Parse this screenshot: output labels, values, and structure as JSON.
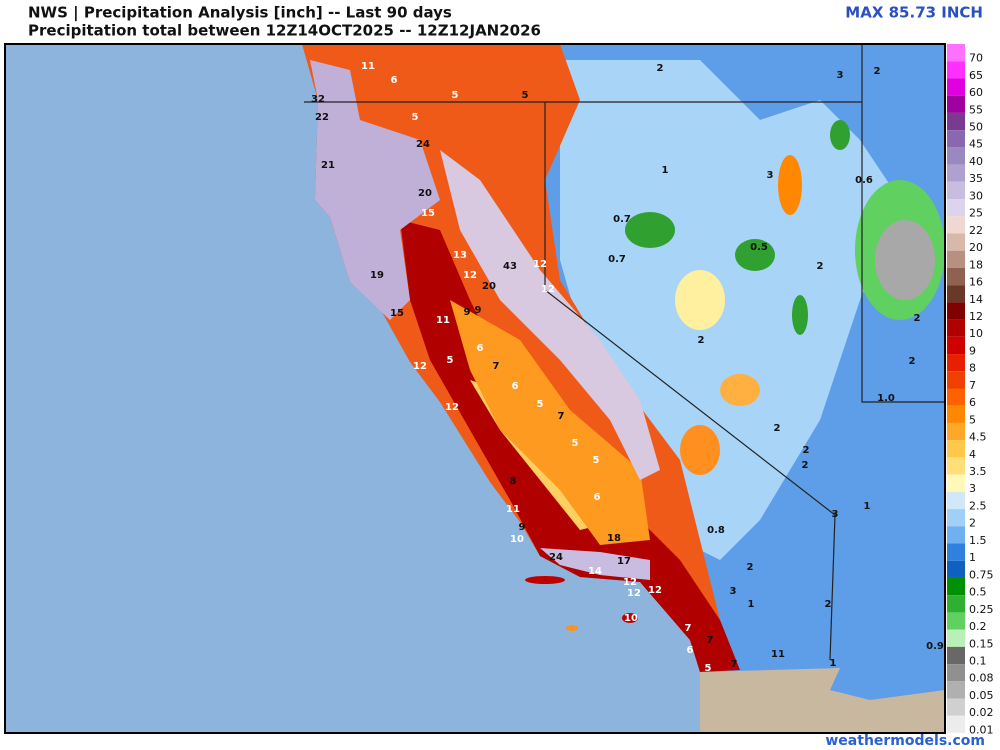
{
  "header": {
    "title": "NWS | Precipitation Analysis [inch] -- Last 90 days",
    "subtitle": "Precipitation total between 12Z14OCT2025 -- 12Z12JAN2026",
    "max_label": "MAX 85.73 INCH"
  },
  "legend": [
    {
      "label": "70",
      "color": "#ff70ff"
    },
    {
      "label": "65",
      "color": "#ff30ff"
    },
    {
      "label": "60",
      "color": "#e000e0"
    },
    {
      "label": "55",
      "color": "#a000a0"
    },
    {
      "label": "50",
      "color": "#7a3a90"
    },
    {
      "label": "45",
      "color": "#8a68b0"
    },
    {
      "label": "40",
      "color": "#9a88c0"
    },
    {
      "label": "35",
      "color": "#b0a0d0"
    },
    {
      "label": "30",
      "color": "#c8bce0"
    },
    {
      "label": "25",
      "color": "#dcd4ec"
    },
    {
      "label": "22",
      "color": "#f0d8d0"
    },
    {
      "label": "20",
      "color": "#d8b8a8"
    },
    {
      "label": "18",
      "color": "#b89080"
    },
    {
      "label": "16",
      "color": "#906050"
    },
    {
      "label": "14",
      "color": "#683828"
    },
    {
      "label": "12",
      "color": "#800000"
    },
    {
      "label": "10",
      "color": "#b00000"
    },
    {
      "label": "9",
      "color": "#d00000"
    },
    {
      "label": "8",
      "color": "#e82000"
    },
    {
      "label": "7",
      "color": "#f04000"
    },
    {
      "label": "6",
      "color": "#ff6000"
    },
    {
      "label": "5",
      "color": "#ff8800"
    },
    {
      "label": "4.5",
      "color": "#ffa828"
    },
    {
      "label": "4",
      "color": "#ffc848"
    },
    {
      "label": "3.5",
      "color": "#ffe078"
    },
    {
      "label": "3",
      "color": "#fff8b8"
    },
    {
      "label": "2.5",
      "color": "#d0e8f8"
    },
    {
      "label": "2",
      "color": "#a0d0f8"
    },
    {
      "label": "1.5",
      "color": "#70b0f0"
    },
    {
      "label": "1",
      "color": "#3080e0"
    },
    {
      "label": "0.75",
      "color": "#1060c0"
    },
    {
      "label": "0.5",
      "color": "#009000"
    },
    {
      "label": "0.25",
      "color": "#30b030"
    },
    {
      "label": "0.2",
      "color": "#60d060"
    },
    {
      "label": "0.15",
      "color": "#b8f0b8"
    },
    {
      "label": "0.1",
      "color": "#686868"
    },
    {
      "label": "0.08",
      "color": "#909090"
    },
    {
      "label": "0.05",
      "color": "#b0b0b0"
    },
    {
      "label": "0.02",
      "color": "#d0d0d0"
    },
    {
      "label": "0.01",
      "color": "#ececec"
    }
  ],
  "map_labels": [
    "11",
    "6",
    "5",
    "5",
    "32",
    "22",
    "5",
    "24",
    "21",
    "20",
    "15",
    "13",
    "12",
    "43",
    "12",
    "20",
    "19",
    "12",
    "15",
    "11",
    "9",
    "9",
    "6",
    "12",
    "5",
    "7",
    "6",
    "12",
    "5",
    "7",
    "5",
    "5",
    "8",
    "6",
    "11",
    "9",
    "10",
    "18",
    "24",
    "17",
    "14",
    "12",
    "12",
    "12",
    "10",
    "0.8",
    "2",
    "3",
    "2",
    "1",
    "3",
    "0.6",
    "0.7",
    "0.5",
    "0.7",
    "2",
    "2",
    "2",
    "2",
    "1.0",
    "2",
    "2",
    "2",
    "3",
    "1",
    "2",
    "3",
    "1",
    "2",
    "11",
    "1",
    "0.9",
    "7",
    "6",
    "5",
    "7",
    "7"
  ],
  "footer": "weathermodels.com"
}
